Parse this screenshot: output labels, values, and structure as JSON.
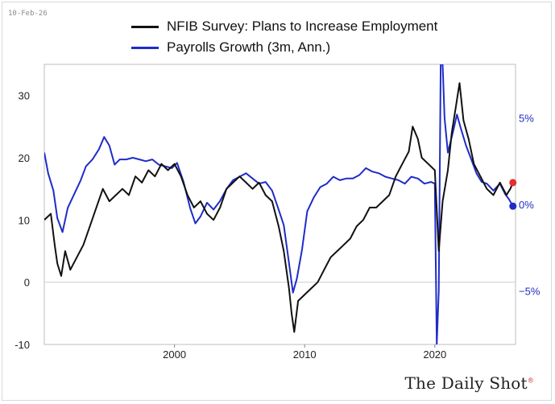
{
  "header": {
    "date": "10-Feb-26"
  },
  "branding": {
    "logo_text": "The Daily Shot",
    "logo_mark": "®"
  },
  "chart_data": {
    "type": "line",
    "title": "",
    "legend_position": "top-center",
    "x_range": [
      1990,
      2026.2
    ],
    "x_ticks": [
      2000,
      2010,
      2020
    ],
    "y_left": {
      "range": [
        -10,
        35
      ],
      "ticks": [
        -10,
        0,
        10,
        20,
        30
      ]
    },
    "y_right": {
      "range": [
        -8.1,
        8.1
      ],
      "ticks": [
        -5,
        0,
        5
      ],
      "tick_labels": [
        "−5%",
        "0%",
        "5%"
      ]
    },
    "grid": "horizontal-zero-line",
    "series": [
      {
        "name": "NFIB Survey: Plans to Increase Employment",
        "axis": "left",
        "color": "#111111",
        "end_marker_color": "#e03030",
        "points": [
          [
            1990.0,
            10
          ],
          [
            1990.5,
            11
          ],
          [
            1990.8,
            6
          ],
          [
            1991.0,
            3
          ],
          [
            1991.3,
            1
          ],
          [
            1991.6,
            5
          ],
          [
            1992.0,
            2
          ],
          [
            1992.5,
            4
          ],
          [
            1993.0,
            6
          ],
          [
            1993.5,
            9
          ],
          [
            1994.0,
            12
          ],
          [
            1994.5,
            15
          ],
          [
            1995.0,
            13
          ],
          [
            1995.5,
            14
          ],
          [
            1996.0,
            15
          ],
          [
            1996.5,
            14
          ],
          [
            1997.0,
            17
          ],
          [
            1997.5,
            16
          ],
          [
            1998.0,
            18
          ],
          [
            1998.5,
            17
          ],
          [
            1999.0,
            19
          ],
          [
            1999.5,
            18
          ],
          [
            2000.0,
            19
          ],
          [
            2000.5,
            17
          ],
          [
            2001.0,
            14
          ],
          [
            2001.5,
            12
          ],
          [
            2002.0,
            13
          ],
          [
            2002.5,
            11
          ],
          [
            2003.0,
            10
          ],
          [
            2003.5,
            12
          ],
          [
            2004.0,
            15
          ],
          [
            2004.5,
            16
          ],
          [
            2005.0,
            17
          ],
          [
            2005.5,
            16
          ],
          [
            2006.0,
            15
          ],
          [
            2006.5,
            16
          ],
          [
            2007.0,
            14
          ],
          [
            2007.5,
            13
          ],
          [
            2008.0,
            9
          ],
          [
            2008.4,
            5
          ],
          [
            2008.8,
            -1
          ],
          [
            2009.0,
            -5
          ],
          [
            2009.2,
            -8
          ],
          [
            2009.5,
            -3
          ],
          [
            2010.0,
            -2
          ],
          [
            2010.5,
            -1
          ],
          [
            2011.0,
            0
          ],
          [
            2011.5,
            2
          ],
          [
            2012.0,
            4
          ],
          [
            2012.5,
            5
          ],
          [
            2013.0,
            6
          ],
          [
            2013.5,
            7
          ],
          [
            2014.0,
            9
          ],
          [
            2014.5,
            10
          ],
          [
            2015.0,
            12
          ],
          [
            2015.5,
            12
          ],
          [
            2016.0,
            13
          ],
          [
            2016.5,
            14
          ],
          [
            2017.0,
            17
          ],
          [
            2017.5,
            19
          ],
          [
            2018.0,
            21
          ],
          [
            2018.3,
            25
          ],
          [
            2018.7,
            23
          ],
          [
            2019.0,
            20
          ],
          [
            2019.5,
            19
          ],
          [
            2020.0,
            18
          ],
          [
            2020.3,
            5
          ],
          [
            2020.6,
            13
          ],
          [
            2021.0,
            18
          ],
          [
            2021.3,
            24
          ],
          [
            2021.6,
            28
          ],
          [
            2021.9,
            32
          ],
          [
            2022.2,
            26
          ],
          [
            2022.6,
            23
          ],
          [
            2023.0,
            19
          ],
          [
            2023.5,
            17
          ],
          [
            2024.0,
            15
          ],
          [
            2024.5,
            14
          ],
          [
            2025.0,
            16
          ],
          [
            2025.5,
            14
          ],
          [
            2025.8,
            15
          ],
          [
            2026.0,
            16
          ]
        ]
      },
      {
        "name": "Payrolls Growth (3m, Ann.)",
        "axis": "right",
        "color": "#1f2cc8",
        "end_marker_color": "#1f2cc8",
        "points": [
          [
            1990.0,
            3.0
          ],
          [
            1990.3,
            1.8
          ],
          [
            1990.7,
            0.8
          ],
          [
            1991.0,
            -0.8
          ],
          [
            1991.4,
            -1.6
          ],
          [
            1991.8,
            -0.2
          ],
          [
            1992.3,
            0.6
          ],
          [
            1992.8,
            1.4
          ],
          [
            1993.2,
            2.2
          ],
          [
            1993.7,
            2.6
          ],
          [
            1994.2,
            3.2
          ],
          [
            1994.6,
            3.9
          ],
          [
            1995.0,
            3.4
          ],
          [
            1995.4,
            2.3
          ],
          [
            1995.8,
            2.6
          ],
          [
            1996.3,
            2.6
          ],
          [
            1996.8,
            2.7
          ],
          [
            1997.3,
            2.6
          ],
          [
            1997.8,
            2.5
          ],
          [
            1998.3,
            2.6
          ],
          [
            1998.8,
            2.3
          ],
          [
            1999.3,
            2.2
          ],
          [
            1999.8,
            2.1
          ],
          [
            2000.2,
            2.4
          ],
          [
            2000.7,
            1.3
          ],
          [
            2001.2,
            -0.2
          ],
          [
            2001.6,
            -1.1
          ],
          [
            2002.0,
            -0.7
          ],
          [
            2002.5,
            0.1
          ],
          [
            2003.0,
            -0.3
          ],
          [
            2003.5,
            0.2
          ],
          [
            2004.0,
            0.9
          ],
          [
            2004.5,
            1.4
          ],
          [
            2005.0,
            1.6
          ],
          [
            2005.5,
            1.8
          ],
          [
            2006.0,
            1.5
          ],
          [
            2006.5,
            1.2
          ],
          [
            2007.0,
            1.3
          ],
          [
            2007.5,
            0.8
          ],
          [
            2008.0,
            -0.3
          ],
          [
            2008.4,
            -1.2
          ],
          [
            2008.8,
            -3.4
          ],
          [
            2009.1,
            -5.1
          ],
          [
            2009.4,
            -4.3
          ],
          [
            2009.8,
            -2.6
          ],
          [
            2010.2,
            -0.4
          ],
          [
            2010.7,
            0.4
          ],
          [
            2011.2,
            1.0
          ],
          [
            2011.7,
            1.2
          ],
          [
            2012.2,
            1.6
          ],
          [
            2012.7,
            1.4
          ],
          [
            2013.2,
            1.5
          ],
          [
            2013.7,
            1.5
          ],
          [
            2014.2,
            1.7
          ],
          [
            2014.7,
            2.1
          ],
          [
            2015.2,
            1.9
          ],
          [
            2015.7,
            1.8
          ],
          [
            2016.2,
            1.6
          ],
          [
            2016.7,
            1.5
          ],
          [
            2017.2,
            1.4
          ],
          [
            2017.7,
            1.2
          ],
          [
            2018.2,
            1.6
          ],
          [
            2018.7,
            1.5
          ],
          [
            2019.2,
            1.2
          ],
          [
            2019.7,
            1.3
          ],
          [
            2020.0,
            1.2
          ],
          [
            2020.15,
            -8.1
          ],
          [
            2020.3,
            -5.0
          ],
          [
            2020.45,
            8.1
          ],
          [
            2020.6,
            8.1
          ],
          [
            2020.75,
            5.0
          ],
          [
            2021.0,
            3.0
          ],
          [
            2021.4,
            4.2
          ],
          [
            2021.7,
            5.2
          ],
          [
            2022.0,
            4.4
          ],
          [
            2022.4,
            3.4
          ],
          [
            2022.8,
            2.6
          ],
          [
            2023.2,
            1.8
          ],
          [
            2023.6,
            1.3
          ],
          [
            2024.0,
            1.2
          ],
          [
            2024.5,
            0.8
          ],
          [
            2025.0,
            1.2
          ],
          [
            2025.4,
            0.6
          ],
          [
            2025.7,
            0.3
          ],
          [
            2026.0,
            -0.1
          ]
        ]
      }
    ]
  }
}
